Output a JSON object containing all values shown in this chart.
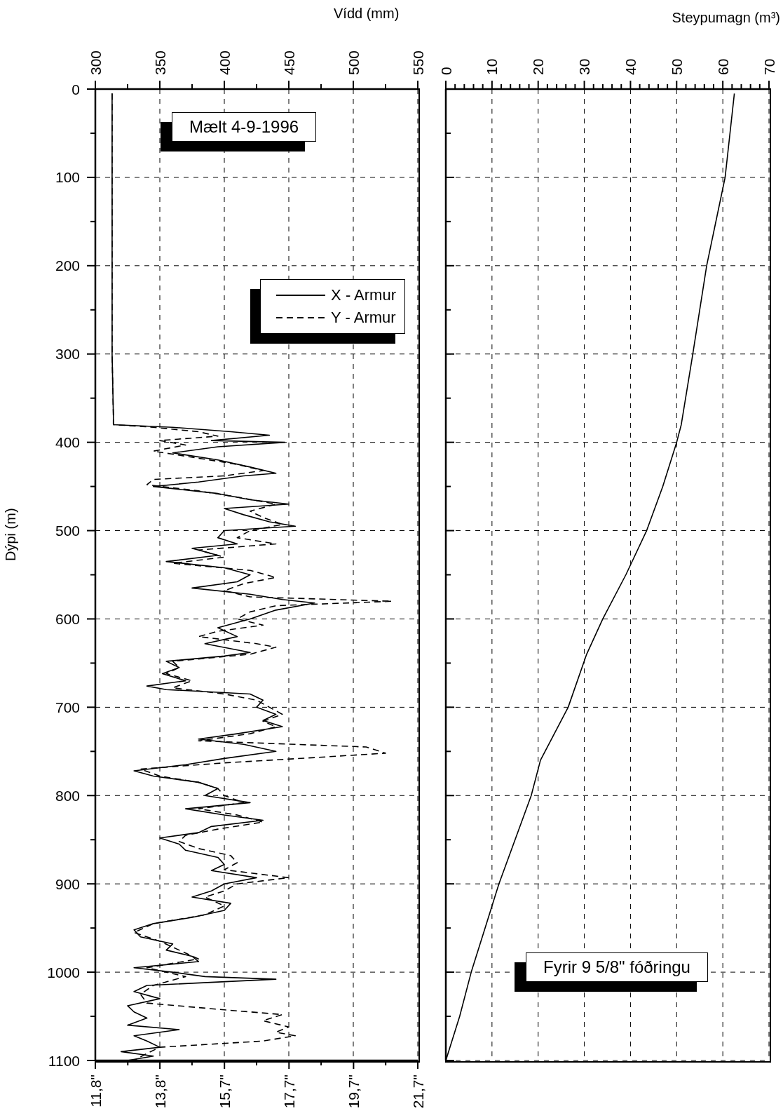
{
  "chart_data": [
    {
      "type": "line",
      "xlabel": "Vídd (mm)",
      "ylabel": "Dýpi (m)",
      "annotations": [
        "Mælt 4-9-1996"
      ],
      "xlim": [
        300,
        550
      ],
      "xticks": [
        300,
        {
          "value": 325,
          "label": null
        },
        350,
        {
          "value": 375,
          "label": null
        },
        400,
        {
          "value": 425,
          "label": null
        },
        450,
        {
          "value": 475,
          "label": null
        },
        500,
        {
          "value": 525,
          "label": null
        },
        550
      ],
      "x2lim": [
        11.81,
        21.65
      ],
      "x2ticks": [
        {
          "value": 11.81,
          "label": "11,8\""
        },
        {
          "value": 12.8,
          "label": null
        },
        {
          "value": 13.78,
          "label": "13,8\""
        },
        {
          "value": 14.76,
          "label": null
        },
        {
          "value": 15.75,
          "label": "15,7\""
        },
        {
          "value": 16.73,
          "label": null
        },
        {
          "value": 17.72,
          "label": "17,7\""
        },
        {
          "value": 18.7,
          "label": null
        },
        {
          "value": 19.69,
          "label": "19,7\""
        },
        {
          "value": 20.67,
          "label": null
        },
        {
          "value": 21.65,
          "label": "21,7\""
        }
      ],
      "ylim": [
        1100,
        0
      ],
      "yticks": [
        0,
        {
          "value": 50,
          "label": null
        },
        100,
        {
          "value": 150,
          "label": null
        },
        200,
        {
          "value": 250,
          "label": null
        },
        300,
        {
          "value": 350,
          "label": null
        },
        400,
        {
          "value": 450,
          "label": null
        },
        500,
        {
          "value": 550,
          "label": null
        },
        600,
        {
          "value": 650,
          "label": null
        },
        700,
        {
          "value": 750,
          "label": null
        },
        800,
        {
          "value": 850,
          "label": null
        },
        900,
        {
          "value": 950,
          "label": null
        },
        1000,
        {
          "value": 1050,
          "label": null
        },
        1100
      ],
      "grid": true,
      "legend": "top right",
      "series": [
        {
          "name": "X - Armur",
          "color": "#000000",
          "line_style": "solid",
          "values": [
            5,
            100,
            200,
            300,
            370,
            380,
            383,
            388,
            392,
            398,
            400,
            405,
            412,
            420,
            428,
            435,
            438,
            445,
            450,
            458,
            465,
            470,
            475,
            482,
            490,
            495,
            500,
            508,
            515,
            520,
            528,
            535,
            542,
            550,
            558,
            565,
            572,
            578,
            582,
            590,
            600,
            610,
            620,
            628,
            638,
            642,
            648,
            655,
            662,
            670,
            676,
            680,
            685,
            692,
            700,
            708,
            715,
            722,
            730,
            736,
            742,
            750,
            758,
            765,
            772,
            778,
            785,
            792,
            800,
            808,
            815,
            822,
            828,
            835,
            842,
            848,
            855,
            862,
            870,
            878,
            885,
            893,
            900,
            908,
            915,
            922,
            930,
            938,
            945,
            952,
            960,
            968,
            975,
            982,
            988,
            995,
            1000,
            1005,
            1008,
            1015,
            1022,
            1030,
            1038,
            1045,
            1052,
            1060,
            1065,
            1072,
            1078,
            1085,
            1090,
            1095,
            1100
          ],
          "x": [
            313,
            313,
            313,
            313,
            314,
            314,
            360,
            405,
            435,
            390,
            447,
            395,
            360,
            395,
            420,
            440,
            415,
            380,
            345,
            395,
            420,
            450,
            400,
            415,
            435,
            455,
            400,
            395,
            410,
            375,
            395,
            355,
            400,
            420,
            410,
            375,
            420,
            445,
            470,
            440,
            420,
            395,
            410,
            385,
            420,
            400,
            355,
            365,
            352,
            370,
            340,
            355,
            420,
            430,
            425,
            440,
            430,
            445,
            410,
            380,
            415,
            440,
            400,
            370,
            330,
            345,
            380,
            395,
            385,
            420,
            370,
            400,
            430,
            390,
            380,
            350,
            365,
            370,
            395,
            400,
            390,
            425,
            400,
            390,
            375,
            405,
            400,
            375,
            345,
            330,
            335,
            360,
            355,
            375,
            380,
            330,
            360,
            385,
            440,
            340,
            330,
            350,
            325,
            330,
            340,
            325,
            365,
            330,
            340,
            350,
            320,
            345,
            325
          ]
        },
        {
          "name": "Y - Armur",
          "color": "#000000",
          "line_style": "dashed",
          "values": [
            5,
            100,
            200,
            300,
            370,
            380,
            383,
            388,
            393,
            398,
            403,
            410,
            418,
            425,
            432,
            438,
            442,
            448,
            455,
            462,
            470,
            478,
            485,
            493,
            500,
            508,
            515,
            522,
            530,
            537,
            545,
            553,
            560,
            568,
            575,
            580,
            585,
            592,
            600,
            607,
            614,
            620,
            628,
            632,
            640,
            648,
            655,
            662,
            670,
            678,
            685,
            692,
            700,
            708,
            716,
            722,
            730,
            738,
            745,
            752,
            757,
            763,
            770,
            778,
            785,
            792,
            800,
            808,
            815,
            822,
            830,
            838,
            845,
            852,
            860,
            868,
            876,
            884,
            893,
            900,
            908,
            915,
            925,
            935,
            945,
            955,
            965,
            975,
            985,
            995,
            1005,
            1015,
            1025,
            1035,
            1042,
            1048,
            1055,
            1062,
            1068,
            1072,
            1078,
            1085,
            1092,
            1100
          ],
          "x": [
            313,
            313,
            313,
            313,
            314,
            314,
            345,
            380,
            395,
            350,
            370,
            345,
            380,
            410,
            430,
            400,
            345,
            340,
            380,
            410,
            440,
            420,
            430,
            445,
            420,
            410,
            440,
            380,
            400,
            360,
            420,
            440,
            415,
            400,
            420,
            530,
            440,
            420,
            410,
            430,
            395,
            380,
            425,
            440,
            420,
            360,
            365,
            355,
            375,
            360,
            400,
            425,
            435,
            445,
            430,
            440,
            420,
            380,
            510,
            525,
            470,
            400,
            335,
            350,
            380,
            395,
            400,
            415,
            380,
            410,
            430,
            395,
            370,
            365,
            380,
            405,
            410,
            400,
            450,
            410,
            400,
            385,
            400,
            385,
            345,
            330,
            350,
            365,
            380,
            340,
            370,
            345,
            335,
            340,
            395,
            445,
            430,
            450,
            440,
            455,
            430,
            350,
            340,
            330
          ]
        }
      ]
    },
    {
      "type": "line",
      "xlabel": "Steypumagn (m³)",
      "annotations": [
        "Fyrir 9 5/8\" fóðringu"
      ],
      "xlim": [
        0,
        70
      ],
      "xticks": [
        0,
        {
          "value": 2,
          "label": null
        },
        {
          "value": 4,
          "label": null
        },
        {
          "value": 6,
          "label": null
        },
        {
          "value": 8,
          "label": null
        },
        10,
        {
          "value": 12,
          "label": null
        },
        {
          "value": 14,
          "label": null
        },
        {
          "value": 16,
          "label": null
        },
        {
          "value": 18,
          "label": null
        },
        20,
        {
          "value": 22,
          "label": null
        },
        {
          "value": 24,
          "label": null
        },
        {
          "value": 26,
          "label": null
        },
        {
          "value": 28,
          "label": null
        },
        30,
        {
          "value": 32,
          "label": null
        },
        {
          "value": 34,
          "label": null
        },
        {
          "value": 36,
          "label": null
        },
        {
          "value": 38,
          "label": null
        },
        40,
        {
          "value": 42,
          "label": null
        },
        {
          "value": 44,
          "label": null
        },
        {
          "value": 46,
          "label": null
        },
        {
          "value": 48,
          "label": null
        },
        50,
        {
          "value": 52,
          "label": null
        },
        {
          "value": 54,
          "label": null
        },
        {
          "value": 56,
          "label": null
        },
        {
          "value": 58,
          "label": null
        },
        60,
        {
          "value": 62,
          "label": null
        },
        {
          "value": 64,
          "label": null
        },
        {
          "value": 66,
          "label": null
        },
        {
          "value": 68,
          "label": null
        },
        70
      ],
      "ylim": [
        1100,
        0
      ],
      "yticks": [
        0,
        {
          "value": 50,
          "label": null
        },
        100,
        {
          "value": 150,
          "label": null
        },
        200,
        {
          "value": 250,
          "label": null
        },
        300,
        {
          "value": 350,
          "label": null
        },
        400,
        {
          "value": 450,
          "label": null
        },
        500,
        {
          "value": 550,
          "label": null
        },
        600,
        {
          "value": 650,
          "label": null
        },
        700,
        {
          "value": 750,
          "label": null
        },
        800,
        {
          "value": 850,
          "label": null
        },
        900,
        {
          "value": 950,
          "label": null
        },
        1000,
        {
          "value": 1050,
          "label": null
        },
        1100
      ],
      "tick_labels": "x",
      "grid": true,
      "series": [
        {
          "color": "#000000",
          "line_style": "solid",
          "values": [
            5,
            100,
            200,
            300,
            380,
            400,
            450,
            500,
            550,
            600,
            640,
            700,
            760,
            800,
            900,
            950,
            1000,
            1050,
            1100
          ],
          "x": [
            62.5,
            60.5,
            56.5,
            53.5,
            51,
            50,
            47,
            43.5,
            39,
            34,
            30.5,
            26.5,
            20.5,
            18.5,
            11.5,
            8.5,
            5.5,
            3,
            0
          ]
        }
      ]
    }
  ]
}
